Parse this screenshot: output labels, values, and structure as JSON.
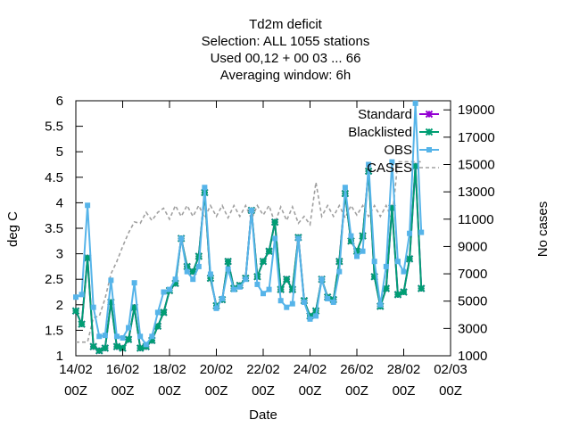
{
  "chart_data": {
    "type": "line",
    "title_lines": [
      "Td2m deficit",
      "Selection: ALL   1055 stations",
      "Used  00,12  + 00 03 ... 66",
      "Averaging window:  6h"
    ],
    "xlabel": "Date",
    "ylabel": "deg C",
    "y2label": "No cases",
    "x_tick_labels": [
      [
        "14/02",
        "00Z"
      ],
      [
        "16/02",
        "00Z"
      ],
      [
        "18/02",
        "00Z"
      ],
      [
        "20/02",
        "00Z"
      ],
      [
        "22/02",
        "00Z"
      ],
      [
        "24/02",
        "00Z"
      ],
      [
        "26/02",
        "00Z"
      ],
      [
        "28/02",
        "00Z"
      ],
      [
        "02/03",
        "00Z"
      ]
    ],
    "y_ticks": [
      "1",
      "1.5",
      "2",
      "2.5",
      "3",
      "3.5",
      "4",
      "4.5",
      "5",
      "5.5",
      "6"
    ],
    "y2_ticks": [
      "1000",
      "3000",
      "5000",
      "7000",
      "9000",
      "11000",
      "13000",
      "15000",
      "17000",
      "19000"
    ],
    "xlim_days": [
      0,
      16
    ],
    "ylim": [
      1,
      6
    ],
    "y2lim": [
      1000,
      19667
    ],
    "legend_position": "top-right",
    "series": [
      {
        "name": "Standard",
        "color": "#9400d3",
        "marker": "star",
        "points": [
          [
            0.0,
            1.88
          ],
          [
            0.25,
            1.62
          ],
          [
            0.5,
            2.92
          ],
          [
            0.75,
            1.18
          ],
          [
            1.0,
            1.1
          ],
          [
            1.25,
            1.15
          ],
          [
            1.5,
            2.05
          ],
          [
            1.75,
            1.18
          ],
          [
            2.0,
            1.15
          ],
          [
            2.25,
            1.32
          ],
          [
            2.5,
            1.95
          ],
          [
            2.75,
            1.15
          ],
          [
            3.0,
            1.18
          ],
          [
            3.25,
            1.3
          ],
          [
            3.5,
            1.58
          ],
          [
            3.75,
            1.85
          ],
          [
            4.0,
            2.28
          ],
          [
            4.25,
            2.42
          ],
          [
            4.5,
            3.3
          ],
          [
            4.75,
            2.75
          ],
          [
            5.0,
            2.65
          ],
          [
            5.25,
            2.95
          ],
          [
            5.5,
            4.2
          ],
          [
            5.75,
            2.52
          ],
          [
            6.0,
            1.98
          ],
          [
            6.25,
            2.1
          ],
          [
            6.5,
            2.85
          ],
          [
            6.75,
            2.32
          ],
          [
            7.0,
            2.38
          ],
          [
            7.25,
            2.52
          ],
          [
            7.5,
            3.85
          ],
          [
            7.75,
            2.55
          ],
          [
            8.0,
            2.85
          ],
          [
            8.25,
            3.05
          ],
          [
            8.5,
            3.62
          ],
          [
            8.75,
            2.3
          ],
          [
            9.0,
            2.5
          ],
          [
            9.25,
            2.3
          ],
          [
            9.5,
            3.32
          ],
          [
            9.75,
            2.08
          ],
          [
            10.0,
            1.78
          ],
          [
            10.25,
            1.88
          ],
          [
            10.5,
            2.5
          ],
          [
            10.75,
            2.15
          ],
          [
            11.0,
            2.1
          ],
          [
            11.25,
            2.85
          ],
          [
            11.5,
            4.18
          ],
          [
            11.75,
            3.25
          ],
          [
            12.0,
            3.05
          ],
          [
            12.25,
            3.35
          ],
          [
            12.5,
            4.62
          ],
          [
            12.75,
            2.55
          ],
          [
            13.0,
            1.97
          ],
          [
            13.25,
            2.32
          ],
          [
            13.5,
            3.9
          ],
          [
            13.75,
            2.2
          ],
          [
            14.0,
            2.25
          ],
          [
            14.25,
            2.9
          ],
          [
            14.5,
            4.72
          ],
          [
            14.75,
            2.32
          ]
        ]
      },
      {
        "name": "Blacklisted",
        "color": "#009e73",
        "marker": "star",
        "points": [
          [
            0.0,
            1.88
          ],
          [
            0.25,
            1.62
          ],
          [
            0.5,
            2.92
          ],
          [
            0.75,
            1.18
          ],
          [
            1.0,
            1.1
          ],
          [
            1.25,
            1.15
          ],
          [
            1.5,
            2.05
          ],
          [
            1.75,
            1.18
          ],
          [
            2.0,
            1.15
          ],
          [
            2.25,
            1.32
          ],
          [
            2.5,
            1.95
          ],
          [
            2.75,
            1.15
          ],
          [
            3.0,
            1.18
          ],
          [
            3.25,
            1.3
          ],
          [
            3.5,
            1.58
          ],
          [
            3.75,
            1.85
          ],
          [
            4.0,
            2.28
          ],
          [
            4.25,
            2.42
          ],
          [
            4.5,
            3.3
          ],
          [
            4.75,
            2.75
          ],
          [
            5.0,
            2.65
          ],
          [
            5.25,
            2.95
          ],
          [
            5.5,
            4.2
          ],
          [
            5.75,
            2.52
          ],
          [
            6.0,
            1.98
          ],
          [
            6.25,
            2.1
          ],
          [
            6.5,
            2.85
          ],
          [
            6.75,
            2.32
          ],
          [
            7.0,
            2.38
          ],
          [
            7.25,
            2.52
          ],
          [
            7.5,
            3.85
          ],
          [
            7.75,
            2.55
          ],
          [
            8.0,
            2.85
          ],
          [
            8.25,
            3.05
          ],
          [
            8.5,
            3.62
          ],
          [
            8.75,
            2.3
          ],
          [
            9.0,
            2.5
          ],
          [
            9.25,
            2.3
          ],
          [
            9.5,
            3.32
          ],
          [
            9.75,
            2.08
          ],
          [
            10.0,
            1.78
          ],
          [
            10.25,
            1.88
          ],
          [
            10.5,
            2.5
          ],
          [
            10.75,
            2.15
          ],
          [
            11.0,
            2.1
          ],
          [
            11.25,
            2.85
          ],
          [
            11.5,
            4.18
          ],
          [
            11.75,
            3.25
          ],
          [
            12.0,
            3.05
          ],
          [
            12.25,
            3.35
          ],
          [
            12.5,
            4.62
          ],
          [
            12.75,
            2.55
          ],
          [
            13.0,
            1.97
          ],
          [
            13.25,
            2.32
          ],
          [
            13.5,
            3.9
          ],
          [
            13.75,
            2.2
          ],
          [
            14.0,
            2.25
          ],
          [
            14.25,
            2.9
          ],
          [
            14.5,
            4.72
          ],
          [
            14.75,
            2.32
          ]
        ]
      },
      {
        "name": "OBS",
        "color": "#56b4e9",
        "marker": "square",
        "points": [
          [
            0.0,
            2.15
          ],
          [
            0.25,
            2.2
          ],
          [
            0.5,
            3.95
          ],
          [
            0.75,
            1.95
          ],
          [
            1.0,
            1.38
          ],
          [
            1.25,
            1.4
          ],
          [
            1.5,
            2.48
          ],
          [
            1.75,
            1.38
          ],
          [
            2.0,
            1.35
          ],
          [
            2.25,
            1.55
          ],
          [
            2.5,
            2.43
          ],
          [
            2.75,
            1.38
          ],
          [
            3.0,
            1.22
          ],
          [
            3.25,
            1.38
          ],
          [
            3.5,
            1.85
          ],
          [
            3.75,
            2.25
          ],
          [
            4.0,
            2.3
          ],
          [
            4.25,
            2.5
          ],
          [
            4.5,
            3.3
          ],
          [
            4.75,
            2.65
          ],
          [
            5.0,
            2.5
          ],
          [
            5.25,
            2.75
          ],
          [
            5.5,
            4.3
          ],
          [
            5.75,
            2.6
          ],
          [
            6.0,
            1.93
          ],
          [
            6.25,
            2.12
          ],
          [
            6.5,
            2.7
          ],
          [
            6.75,
            2.3
          ],
          [
            7.0,
            2.35
          ],
          [
            7.25,
            2.5
          ],
          [
            7.5,
            3.85
          ],
          [
            7.75,
            2.4
          ],
          [
            8.0,
            2.22
          ],
          [
            8.25,
            2.3
          ],
          [
            8.5,
            3.3
          ],
          [
            8.75,
            2.08
          ],
          [
            9.0,
            1.95
          ],
          [
            9.25,
            2.02
          ],
          [
            9.5,
            3.3
          ],
          [
            9.75,
            2.05
          ],
          [
            10.0,
            1.72
          ],
          [
            10.25,
            1.78
          ],
          [
            10.5,
            2.5
          ],
          [
            10.75,
            2.12
          ],
          [
            11.0,
            2.05
          ],
          [
            11.25,
            2.65
          ],
          [
            11.5,
            4.3
          ],
          [
            11.75,
            3.35
          ],
          [
            12.0,
            2.95
          ],
          [
            12.25,
            3.05
          ],
          [
            12.5,
            4.75
          ],
          [
            12.75,
            2.85
          ],
          [
            13.0,
            2.0
          ],
          [
            13.25,
            2.75
          ],
          [
            13.5,
            4.8
          ],
          [
            13.75,
            2.85
          ],
          [
            14.0,
            2.65
          ],
          [
            14.25,
            3.4
          ],
          [
            14.5,
            5.95
          ],
          [
            14.75,
            3.42
          ]
        ]
      },
      {
        "name": "CASES",
        "color": "#a0a0a0",
        "dash": true,
        "points": [
          [
            0.0,
            2000
          ],
          [
            0.25,
            2000
          ],
          [
            0.5,
            2000
          ],
          [
            0.75,
            3800
          ],
          [
            1.0,
            3900
          ],
          [
            1.25,
            5200
          ],
          [
            1.5,
            7000
          ],
          [
            1.75,
            7900
          ],
          [
            2.0,
            9000
          ],
          [
            2.25,
            10000
          ],
          [
            2.5,
            10800
          ],
          [
            2.75,
            10700
          ],
          [
            3.0,
            11500
          ],
          [
            3.25,
            10900
          ],
          [
            3.5,
            11500
          ],
          [
            3.75,
            11800
          ],
          [
            4.0,
            11000
          ],
          [
            4.25,
            12000
          ],
          [
            4.5,
            11200
          ],
          [
            4.75,
            12000
          ],
          [
            5.0,
            11200
          ],
          [
            5.25,
            12000
          ],
          [
            5.5,
            11100
          ],
          [
            5.75,
            12000
          ],
          [
            6.0,
            11200
          ],
          [
            6.25,
            12000
          ],
          [
            6.5,
            11100
          ],
          [
            6.75,
            12000
          ],
          [
            7.0,
            11200
          ],
          [
            7.25,
            12000
          ],
          [
            7.5,
            11000
          ],
          [
            7.75,
            12000
          ],
          [
            8.0,
            11300
          ],
          [
            8.25,
            12000
          ],
          [
            8.5,
            10700
          ],
          [
            8.75,
            11900
          ],
          [
            9.0,
            10900
          ],
          [
            9.25,
            11900
          ],
          [
            9.5,
            10700
          ],
          [
            9.75,
            11200
          ],
          [
            10.0,
            10600
          ],
          [
            10.25,
            13700
          ],
          [
            10.5,
            11200
          ],
          [
            10.75,
            12000
          ],
          [
            11.0,
            11200
          ],
          [
            11.25,
            12000
          ],
          [
            11.5,
            11100
          ],
          [
            11.75,
            12000
          ],
          [
            12.0,
            11300
          ],
          [
            12.25,
            12000
          ],
          [
            12.5,
            11200
          ],
          [
            12.75,
            12000
          ],
          [
            13.0,
            11200
          ],
          [
            13.25,
            12000
          ],
          [
            13.5,
            11000
          ],
          [
            13.75,
            15200
          ],
          [
            14.0,
            15200
          ],
          [
            14.25,
            15200
          ],
          [
            14.5,
            15200
          ],
          [
            14.75,
            15200
          ]
        ]
      }
    ]
  }
}
